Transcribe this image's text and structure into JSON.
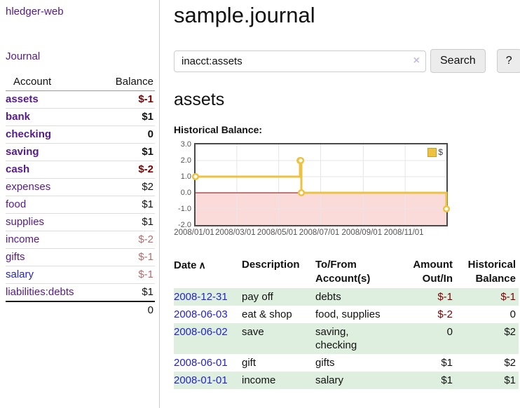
{
  "app": {
    "brand": "hledger-web"
  },
  "sidebar": {
    "nav_journal": "Journal",
    "accounts": {
      "headers": {
        "account": "Account",
        "balance": "Balance"
      },
      "rows": [
        {
          "name": "assets",
          "balance": "$-1"
        },
        {
          "name": "bank",
          "balance": "$1"
        },
        {
          "name": "checking",
          "balance": "0"
        },
        {
          "name": "saving",
          "balance": "$1"
        },
        {
          "name": "cash",
          "balance": "$-2"
        },
        {
          "name": "expenses",
          "balance": "$2"
        },
        {
          "name": "food",
          "balance": "$1"
        },
        {
          "name": "supplies",
          "balance": "$1"
        },
        {
          "name": "income",
          "balance": "$-2"
        },
        {
          "name": "gifts",
          "balance": "$-1"
        },
        {
          "name": "salary",
          "balance": "$-1"
        },
        {
          "name": "liabilities:debts",
          "balance": "$1"
        }
      ],
      "total": "0"
    }
  },
  "main": {
    "title": "sample.journal",
    "search": {
      "value": "inacct:assets",
      "clear_icon": "×",
      "button": "Search",
      "help_button": "?"
    },
    "account_heading": "assets",
    "section_label": "Historical Balance:"
  },
  "chart_data": {
    "type": "line",
    "step": true,
    "title": "Historical Balance",
    "series": [
      {
        "name": "$",
        "color": "#edc240",
        "points": [
          [
            "2008-01-01",
            1
          ],
          [
            "2008-06-01",
            2
          ],
          [
            "2008-06-02",
            2
          ],
          [
            "2008-06-03",
            0
          ],
          [
            "2008-12-31",
            -1
          ]
        ]
      }
    ],
    "xrange": [
      "2008-01-01",
      "2008-12-31"
    ],
    "ylim": [
      -2,
      3
    ],
    "yticks": [
      3.0,
      2.0,
      1.0,
      0.0,
      -1.0,
      -2.0
    ],
    "ytick_labels": [
      "3.0",
      "2.0",
      "1.0",
      "0.0",
      "-1.0",
      "-2.0"
    ],
    "xticks": [
      "2008-01-01",
      "2008-03-01",
      "2008-05-01",
      "2008-07-01",
      "2008-09-01",
      "2008-11-01"
    ],
    "xtick_labels": [
      "2008/01/01",
      "2008/03/01",
      "2008/05/01",
      "2008/07/01",
      "2008/09/01",
      "2008/11/01"
    ],
    "legend": {
      "label": "$",
      "position": "top-right"
    },
    "grid": true,
    "grid_color": "#e6e6e6",
    "negative_region_color": "#fbdada",
    "zero_line_color": "#8b0000",
    "border_color": "#4a4a4a"
  },
  "register": {
    "headers": {
      "date": "Date",
      "sort_indicator": "∧",
      "description": "Description",
      "accounts": "To/From Account(s)",
      "amount": "Amount Out/In",
      "balance": "Historical Balance"
    },
    "rows": [
      {
        "date": "2008-12-31",
        "description": "pay off",
        "accounts": "debts",
        "amount": "$-1",
        "balance": "$-1"
      },
      {
        "date": "2008-06-03",
        "description": "eat & shop",
        "accounts": "food, supplies",
        "amount": "$-2",
        "balance": "0"
      },
      {
        "date": "2008-06-02",
        "description": "save",
        "accounts": "saving, checking",
        "amount": "0",
        "balance": "$2"
      },
      {
        "date": "2008-06-01",
        "description": "gift",
        "accounts": "gifts",
        "amount": "$1",
        "balance": "$2"
      },
      {
        "date": "2008-01-01",
        "description": "income",
        "accounts": "salary",
        "amount": "$1",
        "balance": "$1"
      }
    ]
  }
}
